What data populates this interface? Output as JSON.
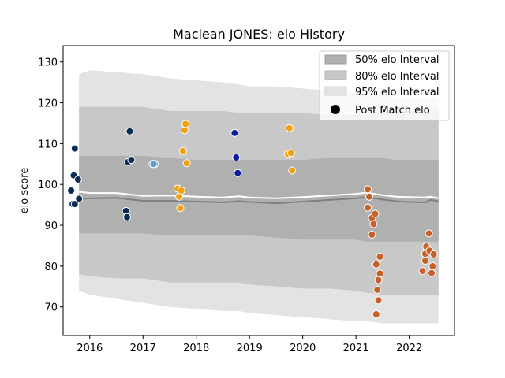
{
  "chart_data": {
    "type": "scatter",
    "title": "Maclean JONES: elo History",
    "xlabel": "",
    "ylabel": "elo score",
    "xlim": [
      2015.5,
      2022.85
    ],
    "ylim": [
      63,
      134
    ],
    "x_ticks": [
      2016,
      2017,
      2018,
      2019,
      2020,
      2021,
      2022
    ],
    "y_ticks": [
      70,
      80,
      90,
      100,
      110,
      120,
      130
    ],
    "grid": false,
    "legend_position": "top-right",
    "legend": {
      "band50": "50% elo Interval",
      "band80": "80% elo Interval",
      "band95": "95% elo Interval",
      "points": "Post Match elo"
    },
    "colors": {
      "band50": "#b0b0b0",
      "band80": "#c8c8c8",
      "band95": "#e3e3e3",
      "mean": "#ffffff",
      "median": "#808080"
    },
    "bands": {
      "x": [
        2015.8,
        2016.0,
        2016.5,
        2017.0,
        2017.5,
        2018.0,
        2018.5,
        2018.8,
        2019.0,
        2019.5,
        2020.0,
        2020.5,
        2021.0,
        2021.2,
        2021.5,
        2021.75,
        2022.0,
        2022.3,
        2022.4,
        2022.55
      ],
      "p95_upper": [
        127,
        128,
        127.5,
        127,
        126,
        125.5,
        125,
        124.5,
        124,
        124,
        123.5,
        123,
        122.5,
        122.5,
        122.5,
        121,
        121,
        121,
        121.5,
        121
      ],
      "p80_upper": [
        119,
        119,
        119,
        119,
        118,
        118,
        118,
        117.5,
        117.5,
        117.5,
        117.5,
        117,
        117,
        117,
        117.5,
        118,
        118,
        118,
        118,
        118
      ],
      "p50_upper": [
        107,
        107,
        107,
        107,
        106.5,
        106,
        106,
        106,
        106,
        106,
        106,
        106.5,
        106.5,
        106.5,
        106.5,
        106,
        106,
        106,
        106,
        106
      ],
      "p50_lower": [
        88,
        88,
        88,
        88,
        87.5,
        87.5,
        87.5,
        87.5,
        87.5,
        87,
        86.5,
        86.5,
        86.5,
        86,
        86,
        86,
        86,
        86,
        86,
        86
      ],
      "p80_lower": [
        78,
        77.5,
        77,
        77,
        76,
        76,
        76,
        76,
        75.5,
        75,
        74.5,
        74.5,
        74,
        73.5,
        73,
        73,
        73,
        73,
        73,
        73
      ],
      "p95_lower": [
        74,
        73,
        72,
        71,
        70,
        69.5,
        69,
        69,
        68.5,
        68,
        67.5,
        67,
        66.5,
        66.5,
        66,
        66,
        66,
        66,
        66,
        66
      ],
      "mean": [
        98.2,
        97.9,
        97.9,
        97.2,
        97.3,
        97.0,
        96.8,
        97.1,
        96.8,
        96.6,
        96.9,
        97.3,
        97.7,
        98.0,
        97.4,
        97.0,
        96.9,
        96.8,
        97.0,
        96.6
      ],
      "median": [
        96.4,
        96.6,
        96.7,
        96.0,
        96.0,
        95.8,
        95.6,
        95.9,
        95.7,
        95.4,
        95.8,
        96.2,
        96.6,
        96.9,
        96.3,
        95.9,
        95.7,
        95.6,
        96.2,
        95.9
      ]
    },
    "series": [
      {
        "fill": "#0a2d55",
        "points": [
          [
            2015.65,
            98.5
          ],
          [
            2015.68,
            95.2
          ],
          [
            2015.72,
            95.2
          ],
          [
            2015.7,
            102.2
          ],
          [
            2015.72,
            108.8
          ],
          [
            2015.78,
            101.2
          ],
          [
            2015.8,
            96.5
          ],
          [
            2016.68,
            93.5
          ],
          [
            2016.7,
            92.0
          ],
          [
            2016.72,
            105.5
          ],
          [
            2016.75,
            113.0
          ],
          [
            2016.78,
            106.0
          ],
          [
            2017.18,
            105.0
          ],
          [
            2017.22,
            105.0
          ]
        ]
      },
      {
        "fill": "#5aa0d0",
        "points": [
          [
            2017.2,
            105.0
          ]
        ]
      },
      {
        "fill": "#f0a00a",
        "points": [
          [
            2017.65,
            99.0
          ],
          [
            2017.68,
            97.0
          ],
          [
            2017.7,
            94.2
          ],
          [
            2017.72,
            98.5
          ],
          [
            2017.75,
            108.2
          ],
          [
            2017.78,
            113.3
          ],
          [
            2017.8,
            114.8
          ],
          [
            2017.82,
            105.2
          ],
          [
            2019.72,
            107.5
          ],
          [
            2019.75,
            113.8
          ],
          [
            2019.78,
            107.7
          ],
          [
            2019.8,
            103.4
          ]
        ]
      },
      {
        "fill": "#0a1e9c",
        "points": [
          [
            2018.72,
            112.6
          ],
          [
            2018.75,
            106.6
          ],
          [
            2018.78,
            102.8
          ]
        ]
      },
      {
        "fill": "#c8602a",
        "points": [
          [
            2021.22,
            98.8
          ],
          [
            2021.25,
            97.0
          ],
          [
            2021.22,
            94.3
          ],
          [
            2021.3,
            91.8
          ],
          [
            2021.33,
            90.3
          ],
          [
            2021.36,
            92.8
          ],
          [
            2021.3,
            87.7
          ],
          [
            2021.38,
            80.4
          ],
          [
            2021.45,
            82.3
          ],
          [
            2021.42,
            76.6
          ],
          [
            2021.45,
            78.2
          ],
          [
            2021.4,
            74.2
          ],
          [
            2021.42,
            71.6
          ],
          [
            2021.38,
            68.2
          ],
          [
            2022.25,
            78.8
          ],
          [
            2022.3,
            81.3
          ],
          [
            2022.3,
            83.0
          ],
          [
            2022.32,
            84.8
          ],
          [
            2022.37,
            88.0
          ],
          [
            2022.38,
            83.8
          ],
          [
            2022.42,
            78.3
          ],
          [
            2022.44,
            80.0
          ],
          [
            2022.46,
            82.9
          ]
        ]
      }
    ]
  }
}
